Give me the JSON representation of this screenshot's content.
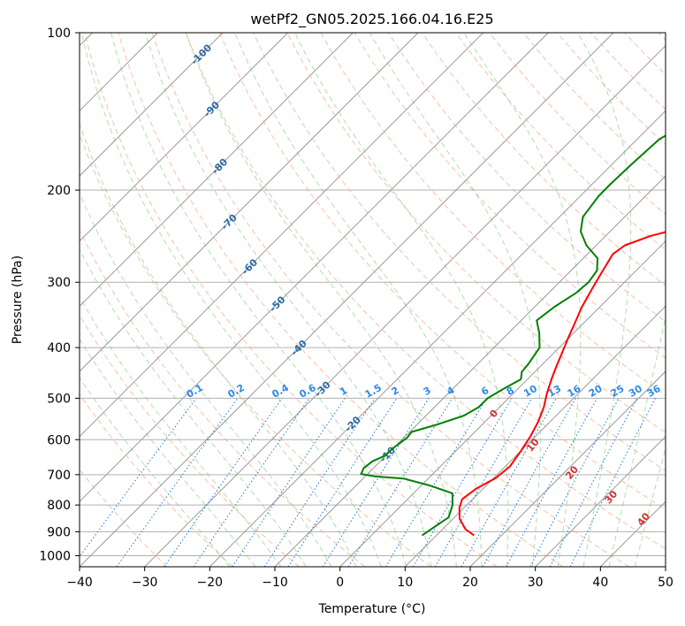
{
  "chart_data": {
    "type": "line",
    "title": "wetPf2_GN05.2025.166.04.16.E25",
    "xlabel": "Temperature (°C)",
    "ylabel": "Pressure (hPa)",
    "xlim": [
      -40,
      50
    ],
    "ylim": [
      1050,
      100
    ],
    "y_scale": "log",
    "x_ticks": [
      "−40",
      "−30",
      "−20",
      "−10",
      "0",
      "10",
      "20",
      "30",
      "40",
      "50"
    ],
    "y_ticks": [
      "100",
      "200",
      "300",
      "400",
      "500",
      "600",
      "700",
      "800",
      "900",
      "1000"
    ],
    "grid": true,
    "series": [
      {
        "role": "temperature",
        "color": "#ff0000",
        "points": [
          [
            15.8,
            915
          ],
          [
            13.5,
            890
          ],
          [
            11.0,
            850
          ],
          [
            9.3,
            810
          ],
          [
            8.4,
            780
          ],
          [
            8.9,
            745
          ],
          [
            10.3,
            710
          ],
          [
            10.7,
            675
          ],
          [
            10.0,
            630
          ],
          [
            9.2,
            590
          ],
          [
            8.2,
            555
          ],
          [
            6.8,
            520
          ],
          [
            5.2,
            490
          ],
          [
            3.7,
            460
          ],
          [
            2.5,
            435
          ],
          [
            1.3,
            410
          ],
          [
            0.0,
            385
          ],
          [
            -1.4,
            358
          ],
          [
            -2.7,
            335
          ],
          [
            -3.9,
            310
          ],
          [
            -5.0,
            287
          ],
          [
            -6.1,
            265
          ],
          [
            -5.6,
            255
          ],
          [
            -3.2,
            245
          ],
          [
            0.0,
            237
          ],
          [
            3.5,
            230
          ],
          [
            6.5,
            220
          ],
          [
            9.5,
            207
          ],
          [
            12.3,
            190
          ],
          [
            14.6,
            170
          ],
          [
            17.1,
            150
          ],
          [
            20.8,
            133
          ],
          [
            24.3,
            124
          ],
          [
            27.6,
            117
          ],
          [
            30.1,
            110
          ],
          [
            32.1,
            104
          ],
          [
            33.8,
            100
          ]
        ]
      },
      {
        "role": "dewpoint",
        "color": "#008000",
        "points": [
          [
            7.8,
            915
          ],
          [
            8.6,
            870
          ],
          [
            9.1,
            845
          ],
          [
            7.8,
            800
          ],
          [
            6.0,
            760
          ],
          [
            1.5,
            735
          ],
          [
            -3.8,
            712
          ],
          [
            -8.6,
            705
          ],
          [
            -11.0,
            698
          ],
          [
            -11.5,
            680
          ],
          [
            -11.2,
            660
          ],
          [
            -10.2,
            645
          ],
          [
            -10.0,
            620
          ],
          [
            -9.5,
            595
          ],
          [
            -9.7,
            580
          ],
          [
            -7.0,
            562
          ],
          [
            -4.2,
            540
          ],
          [
            -3.2,
            520
          ],
          [
            -3.2,
            500
          ],
          [
            -2.2,
            480
          ],
          [
            -1.0,
            460
          ],
          [
            -2.0,
            445
          ],
          [
            -2.2,
            430
          ],
          [
            -3.0,
            400
          ],
          [
            -5.3,
            375
          ],
          [
            -7.6,
            355
          ],
          [
            -7.0,
            335
          ],
          [
            -5.8,
            315
          ],
          [
            -5.5,
            300
          ],
          [
            -6.0,
            285
          ],
          [
            -7.8,
            270
          ],
          [
            -11.5,
            255
          ],
          [
            -14.5,
            240
          ],
          [
            -16.4,
            225
          ],
          [
            -17.2,
            205
          ],
          [
            -17.2,
            195
          ],
          [
            -17.0,
            178
          ],
          [
            -16.6,
            160
          ],
          [
            -15.0,
            150
          ],
          [
            -13.5,
            138
          ],
          [
            -12.0,
            127
          ],
          [
            -10.5,
            119
          ],
          [
            -8.7,
            111
          ],
          [
            -7.4,
            105
          ],
          [
            -6.0,
            100
          ]
        ]
      }
    ],
    "dry_adiabat_labels": [
      "-100",
      "-90",
      "-80",
      "-70",
      "-60",
      "-50",
      "-40",
      "-30",
      "-20",
      "-10"
    ],
    "moist_adiabat_labels": [
      "0",
      "10",
      "20",
      "30",
      "40"
    ],
    "mixing_ratio_labels": [
      "0.1",
      "0.2",
      "0.4",
      "0.6",
      "1",
      "1.5",
      "2",
      "3",
      "4",
      "6",
      "8",
      "10",
      "13",
      "16",
      "20",
      "25",
      "30",
      "36"
    ],
    "colors": {
      "isotherm": "#999999",
      "dry_adiabat": "#f4a582",
      "moist_adiabat": "#66bb66",
      "mixing_ratio": "#1f77d4",
      "temperature": "#ff0000",
      "dewpoint": "#008000"
    }
  }
}
